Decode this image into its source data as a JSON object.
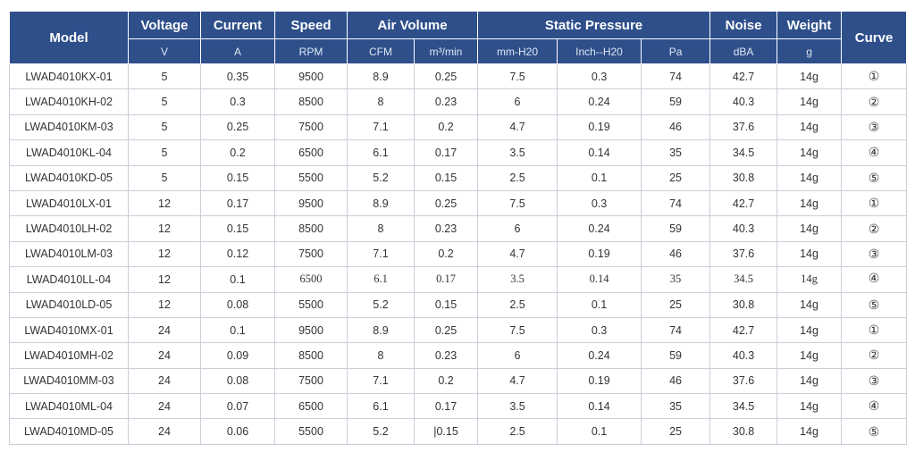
{
  "header": {
    "model": "Model",
    "voltage": "Voltage",
    "current": "Current",
    "speed": "Speed",
    "air_volume": "Air Volume",
    "static_pressure": "Static Pressure",
    "noise": "Noise",
    "weight": "Weight",
    "curve": "Curve",
    "units": {
      "voltage": "V",
      "current": "A",
      "speed": "RPM",
      "cfm": "CFM",
      "m3min": "m³/min",
      "mmh20": "mm-H20",
      "inchh20": "Inch--H20",
      "pa": "Pa",
      "dba": "dBA",
      "g": "g"
    }
  },
  "rows": [
    [
      "LWAD4010KX-01",
      "5",
      "0.35",
      "9500",
      "8.9",
      "0.25",
      "7.5",
      "0.3",
      "74",
      "42.7",
      "14g",
      "①"
    ],
    [
      "LWAD4010KH-02",
      "5",
      "0.3",
      "8500",
      "8",
      "0.23",
      "6",
      "0.24",
      "59",
      "40.3",
      "14g",
      "②"
    ],
    [
      "LWAD4010KM-03",
      "5",
      "0.25",
      "7500",
      "7.1",
      "0.2",
      "4.7",
      "0.19",
      "46",
      "37.6",
      "14g",
      "③"
    ],
    [
      "LWAD4010KL-04",
      "5",
      "0.2",
      "6500",
      "6.1",
      "0.17",
      "3.5",
      "0.14",
      "35",
      "34.5",
      "14g",
      "④"
    ],
    [
      "LWAD4010KD-05",
      "5",
      "0.15",
      "5500",
      "5.2",
      "0.15",
      "2.5",
      "0.1",
      "25",
      "30.8",
      "14g",
      "⑤"
    ],
    [
      "LWAD4010LX-01",
      "12",
      "0.17",
      "9500",
      "8.9",
      "0.25",
      "7.5",
      "0.3",
      "74",
      "42.7",
      "14g",
      "①"
    ],
    [
      "LWAD4010LH-02",
      "12",
      "0.15",
      "8500",
      "8",
      "0.23",
      "6",
      "0.24",
      "59",
      "40.3",
      "14g",
      "②"
    ],
    [
      "LWAD4010LM-03",
      "12",
      "0.12",
      "7500",
      "7.1",
      "0.2",
      "4.7",
      "0.19",
      "46",
      "37.6",
      "14g",
      "③"
    ],
    [
      "LWAD4010LL-04",
      "12",
      "0.1",
      "6500",
      "6.1",
      "0.17",
      "3.5",
      "0.14",
      "35",
      "34.5",
      "14g",
      "④"
    ],
    [
      "LWAD4010LD-05",
      "12",
      "0.08",
      "5500",
      "5.2",
      "0.15",
      "2.5",
      "0.1",
      "25",
      "30.8",
      "14g",
      "⑤"
    ],
    [
      "LWAD4010MX-01",
      "24",
      "0.1",
      "9500",
      "8.9",
      "0.25",
      "7.5",
      "0.3",
      "74",
      "42.7",
      "14g",
      "①"
    ],
    [
      "LWAD4010MH-02",
      "24",
      "0.09",
      "8500",
      "8",
      "0.23",
      "6",
      "0.24",
      "59",
      "40.3",
      "14g",
      "②"
    ],
    [
      "LWAD4010MM-03",
      "24",
      "0.08",
      "7500",
      "7.1",
      "0.2",
      "4.7",
      "0.19",
      "46",
      "37.6",
      "14g",
      "③"
    ],
    [
      "LWAD4010ML-04",
      "24",
      "0.07",
      "6500",
      "6.1",
      "0.17",
      "3.5",
      "0.14",
      "35",
      "34.5",
      "14g",
      "④"
    ],
    [
      "LWAD4010MD-05",
      "24",
      "0.06",
      "5500",
      "5.2",
      "|0.15",
      "2.5",
      "0.1",
      "25",
      "30.8",
      "14g",
      "⑤"
    ]
  ],
  "colors": {
    "header_bg": "#2e4f8a",
    "header_text": "#ffffff",
    "border": "#c9cfd8"
  }
}
